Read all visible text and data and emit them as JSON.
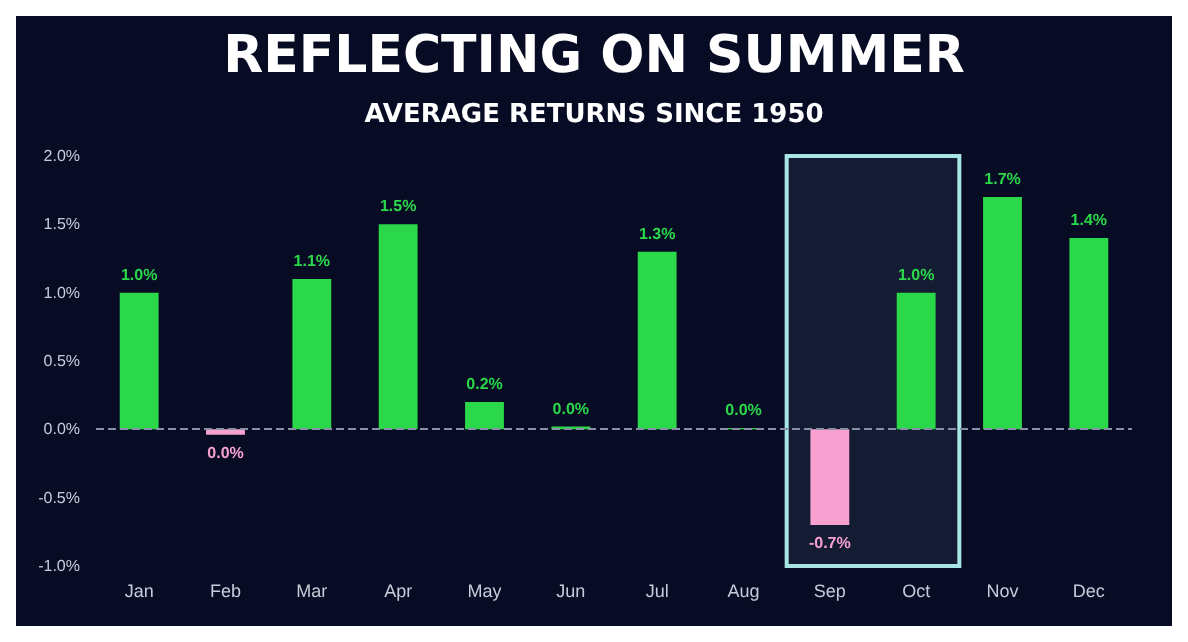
{
  "chart_data": {
    "type": "bar",
    "title": "REFLECTING ON SUMMER",
    "subtitle": "AVERAGE RETURNS SINCE 1950",
    "categories": [
      "Jan",
      "Feb",
      "Mar",
      "Apr",
      "May",
      "Jun",
      "Jul",
      "Aug",
      "Sep",
      "Oct",
      "Nov",
      "Dec"
    ],
    "values": [
      1.0,
      -0.04,
      1.1,
      1.5,
      0.2,
      0.02,
      1.3,
      0.01,
      -0.7,
      1.0,
      1.7,
      1.4
    ],
    "colors": [
      "#2bd84a",
      "#f7a1d0",
      "#2bd84a",
      "#2bd84a",
      "#2bd84a",
      "#2bd84a",
      "#2bd84a",
      "#2bd84a",
      "#f7a1d0",
      "#2bd84a",
      "#2bd84a",
      "#2bd84a"
    ],
    "value_labels": [
      "1.0%",
      "0.0%",
      "1.1%",
      "1.5%",
      "0.2%",
      "0.0%",
      "1.3%",
      "0.0%",
      "-0.7%",
      "1.0%",
      "1.7%",
      "1.4%"
    ],
    "ylim": [
      -1.0,
      2.0
    ],
    "yticks": [
      {
        "value": -1.0,
        "label": "-1.0%"
      },
      {
        "value": -0.5,
        "label": "-0.5%"
      },
      {
        "value": 0,
        "label": "0.0%"
      },
      {
        "value": 0.5,
        "label": "0.5%"
      },
      {
        "value": 1.0,
        "label": "1.0%"
      },
      {
        "value": 1.5,
        "label": "1.5%"
      },
      {
        "value": 2.0,
        "label": "2.0%"
      }
    ],
    "bands": [
      {
        "axis": "x",
        "from": "Sep",
        "to": "Oct",
        "color": "#a8e6e6"
      }
    ],
    "ref_lines": [
      {
        "axis": "y",
        "value": 0,
        "color": "#8890a8",
        "line_style": "dashed"
      }
    ]
  }
}
